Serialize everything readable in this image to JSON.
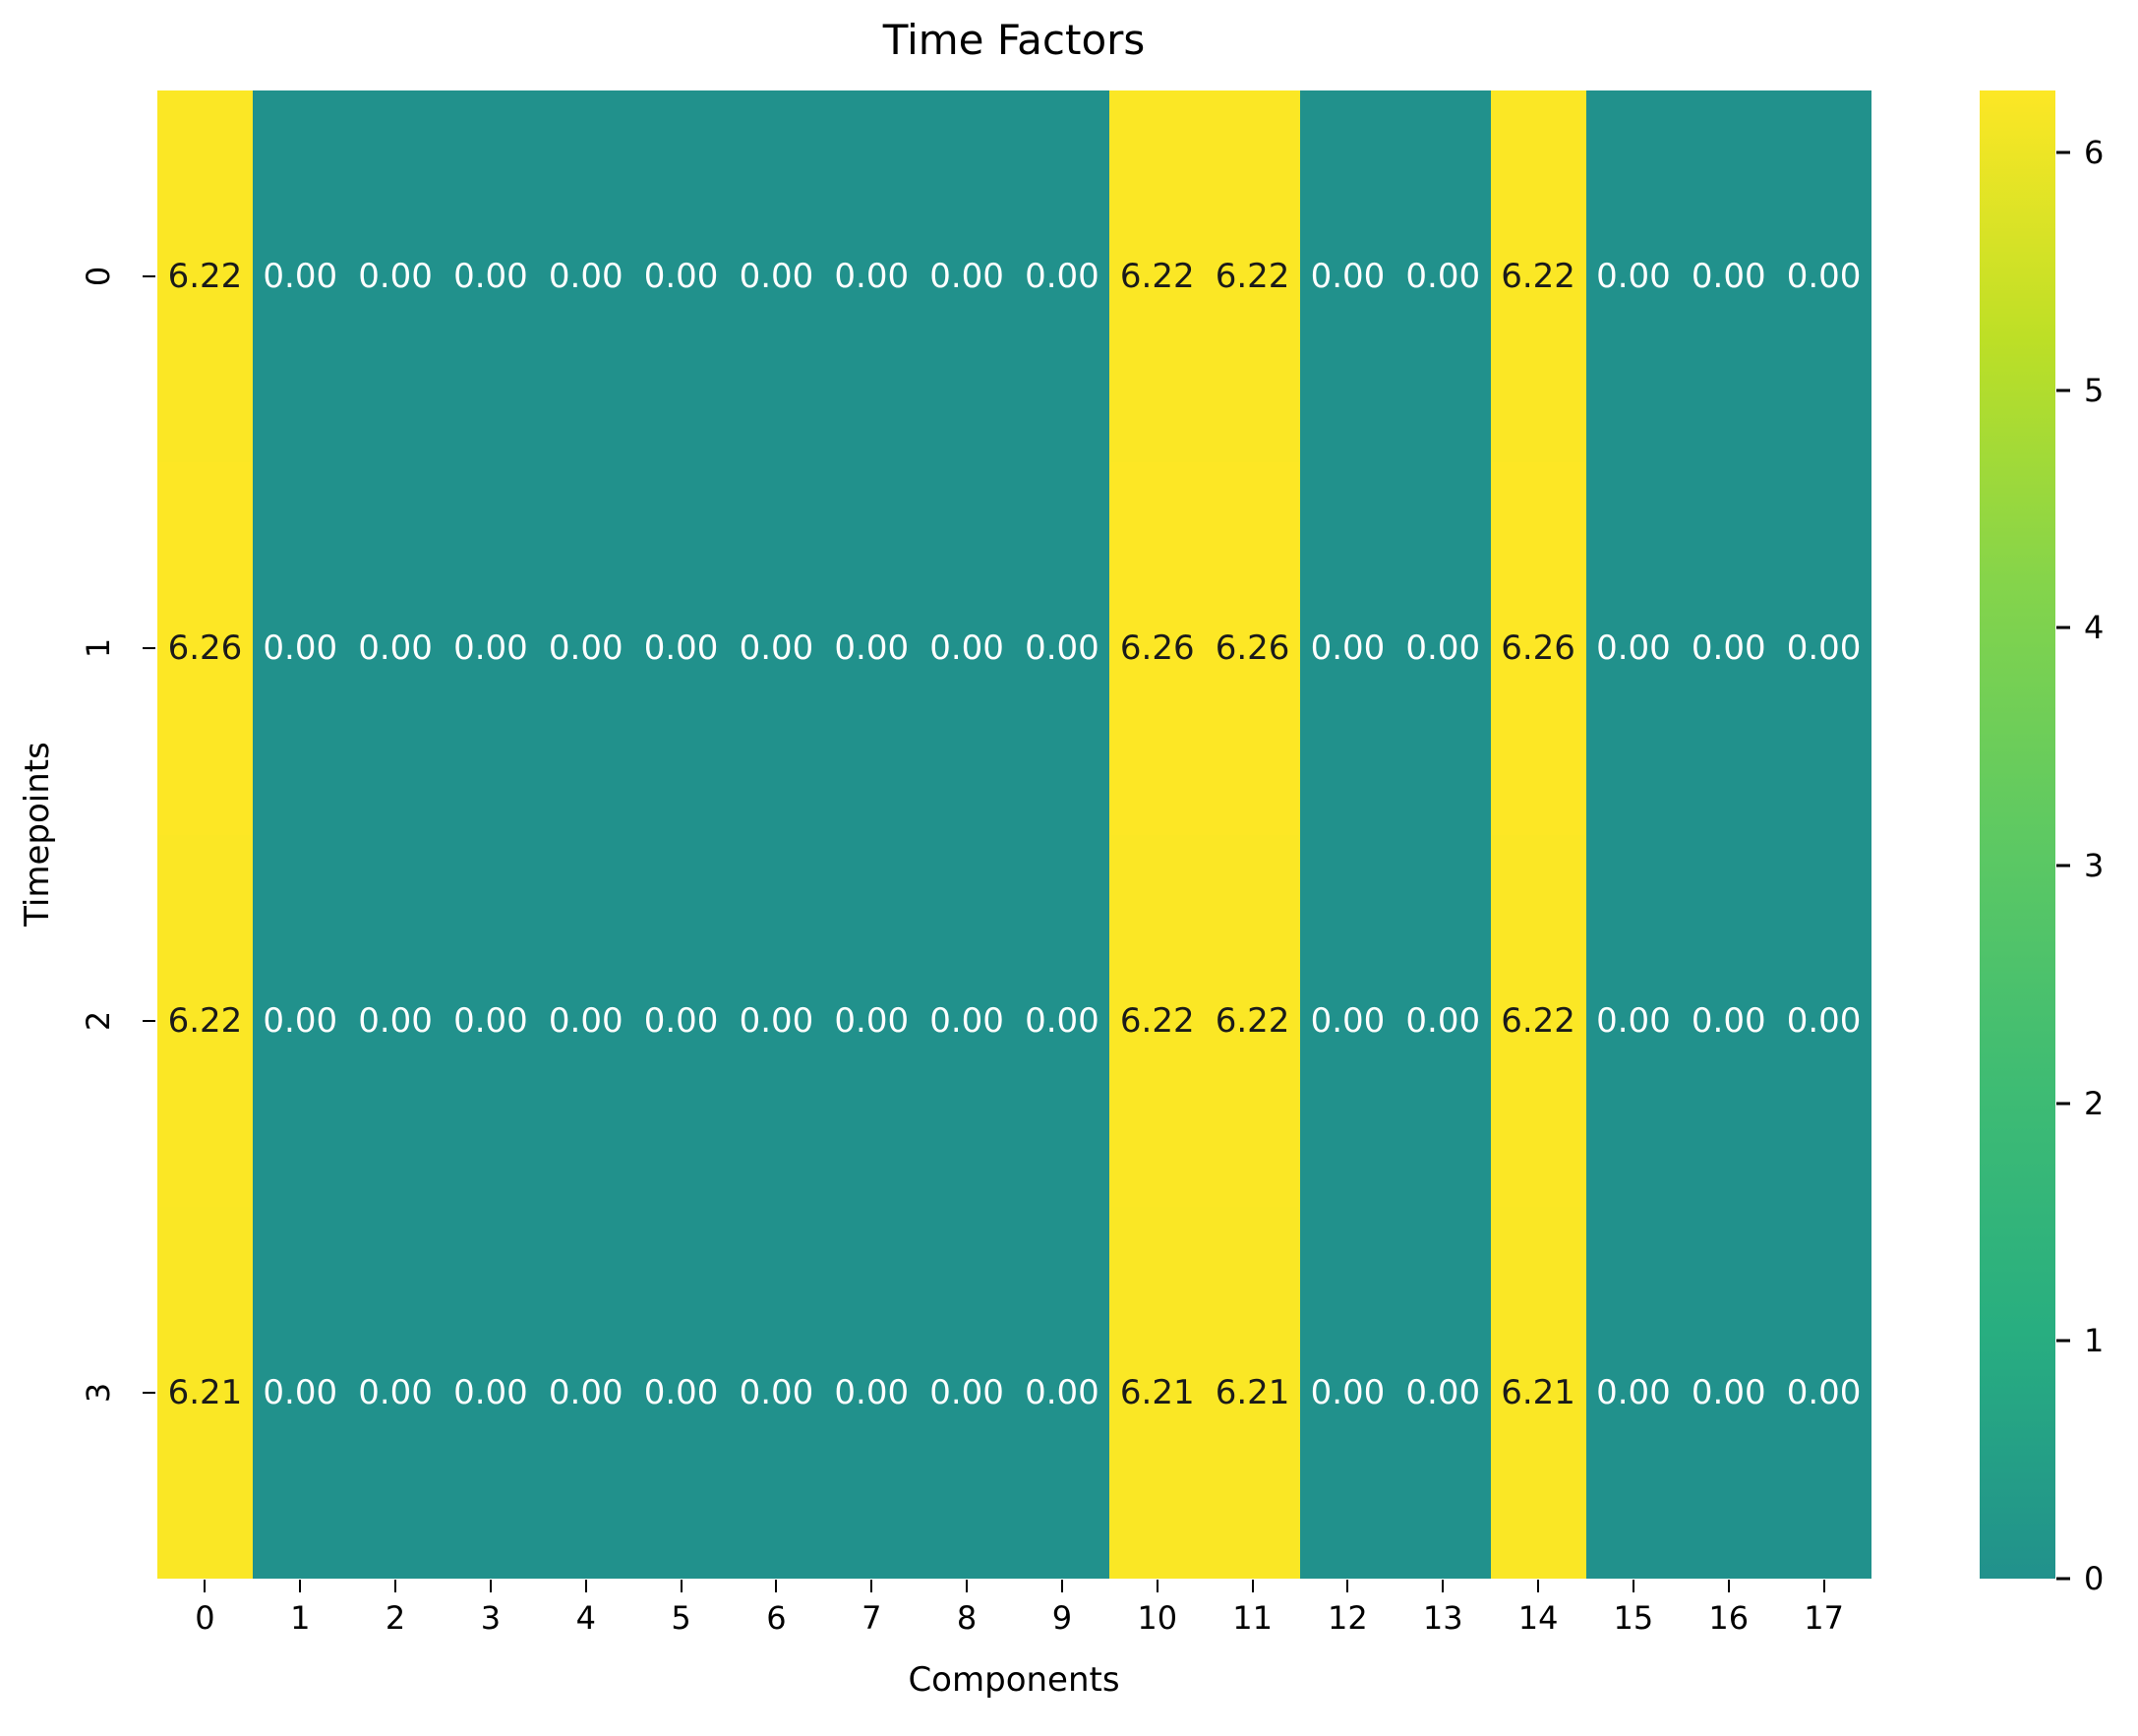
{
  "chart_data": {
    "type": "heatmap",
    "title": "Time Factors",
    "xlabel": "Components",
    "ylabel": "Timepoints",
    "x_tick_labels": [
      "0",
      "1",
      "2",
      "3",
      "4",
      "5",
      "6",
      "7",
      "8",
      "9",
      "10",
      "11",
      "12",
      "13",
      "14",
      "15",
      "16",
      "17"
    ],
    "y_tick_labels": [
      "0",
      "1",
      "2",
      "3"
    ],
    "values": [
      [
        6.22,
        0.0,
        0.0,
        0.0,
        0.0,
        0.0,
        0.0,
        0.0,
        0.0,
        0.0,
        6.22,
        6.22,
        0.0,
        0.0,
        6.22,
        0.0,
        0.0,
        0.0
      ],
      [
        6.26,
        0.0,
        0.0,
        0.0,
        0.0,
        0.0,
        0.0,
        0.0,
        0.0,
        0.0,
        6.26,
        6.26,
        0.0,
        0.0,
        6.26,
        0.0,
        0.0,
        0.0
      ],
      [
        6.22,
        0.0,
        0.0,
        0.0,
        0.0,
        0.0,
        0.0,
        0.0,
        0.0,
        0.0,
        6.22,
        6.22,
        0.0,
        0.0,
        6.22,
        0.0,
        0.0,
        0.0
      ],
      [
        6.21,
        0.0,
        0.0,
        0.0,
        0.0,
        0.0,
        0.0,
        0.0,
        0.0,
        0.0,
        6.21,
        6.21,
        0.0,
        0.0,
        6.21,
        0.0,
        0.0,
        0.0
      ]
    ],
    "annotation_decimals": 2,
    "vmin": 0,
    "vmax": 6.26,
    "colorbar_ticks": [
      0,
      1,
      2,
      3,
      4,
      5,
      6
    ],
    "legend_position": "right-colorbar",
    "grid": false,
    "colors": {
      "cell_low": "#21918c",
      "cell_high": "#fbe423",
      "gradient_low_to_high": [
        "#21918c",
        "#28ae80",
        "#3fbc73",
        "#5ec962",
        "#84d44b",
        "#bddf26",
        "#fde725"
      ],
      "annotation_on_dark": "#ffffff",
      "annotation_on_light": "#1a1a1a"
    }
  }
}
